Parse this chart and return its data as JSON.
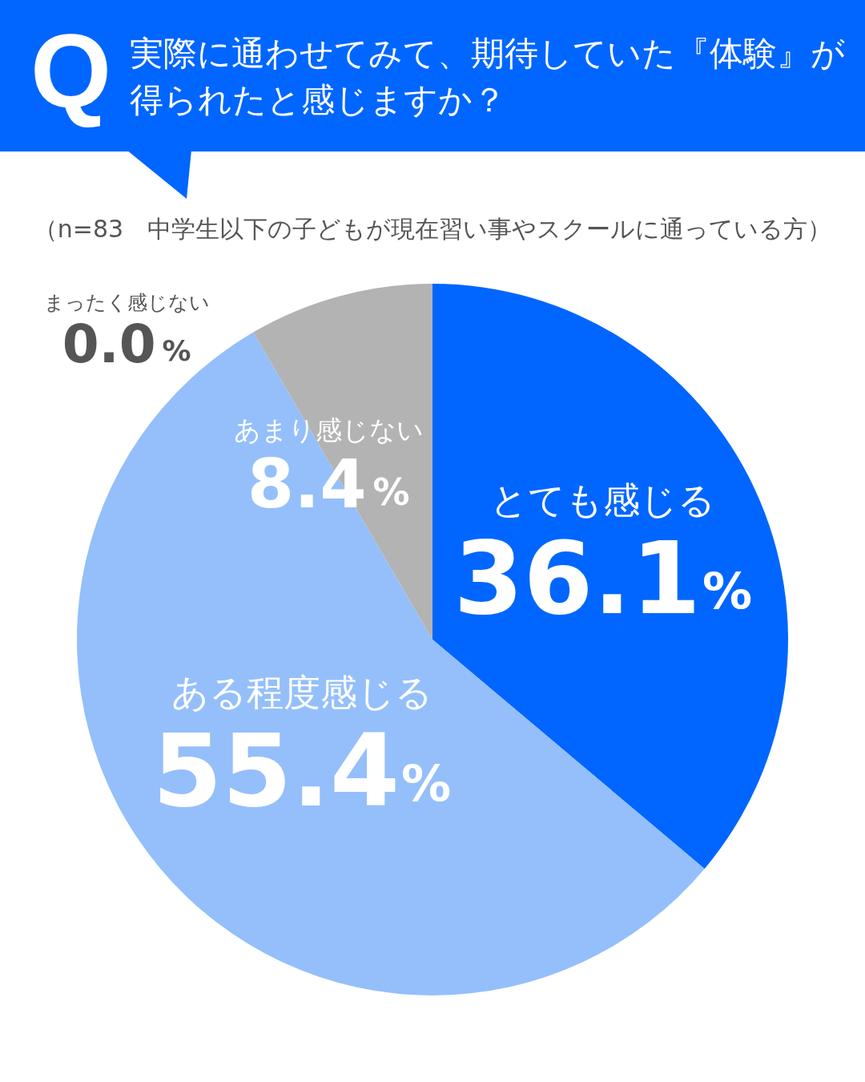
{
  "chart_data": {
    "type": "pie",
    "title": "実際に通わせてみて、期待していた『体験』が得られたと感じますか？",
    "subtitle": "（n=83　中学生以下の子どもが現在習い事やスクールに通っている方）",
    "annotations": [
      "Q"
    ],
    "categories": [
      "とても感じる",
      "ある程度感じる",
      "あまり感じない",
      "まったく感じない"
    ],
    "values": [
      36.1,
      55.4,
      8.4,
      0.0
    ],
    "colors": [
      "#0066ff",
      "#94bffb",
      "#b3b3b3",
      "#555555"
    ],
    "value_labels": [
      "36.1%",
      "55.4%",
      "8.4%",
      "0.0%"
    ]
  }
}
